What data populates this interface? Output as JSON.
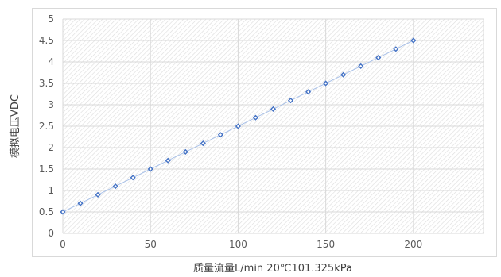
{
  "chart_data": {
    "type": "scatter",
    "title": "",
    "xlabel": "质量流量L/min 20℃101.325kPa",
    "ylabel": "模拟电压VDC",
    "xlim": [
      0,
      240
    ],
    "ylim": [
      0,
      5
    ],
    "x_ticks": [
      "0",
      "50",
      "100",
      "150",
      "200"
    ],
    "y_ticks": [
      "0",
      "0.5",
      "1",
      "1.5",
      "2",
      "2.5",
      "3",
      "3.5",
      "4",
      "4.5",
      "5"
    ],
    "grid": true,
    "legend": "none",
    "series": [
      {
        "x": [
          0,
          10,
          20,
          30,
          40,
          50,
          60,
          70,
          80,
          90,
          100,
          110,
          120,
          130,
          140,
          150,
          160,
          170,
          180,
          190,
          200
        ],
        "y": [
          0.5,
          0.7,
          0.9,
          1.1,
          1.3,
          1.5,
          1.7,
          1.9,
          2.1,
          2.3,
          2.5,
          2.7,
          2.9,
          3.1,
          3.3,
          3.5,
          3.7,
          3.9,
          4.1,
          4.3,
          4.5
        ],
        "line": true,
        "marker": "diamond-hollow",
        "color": "#4472C4",
        "line_color": "#A9C1E8"
      }
    ],
    "colors": {
      "plot_bg_pattern": "#D9D9D9",
      "grid": "#D9D9D9",
      "frame": "#D9D9D9",
      "text": "#595959"
    }
  }
}
